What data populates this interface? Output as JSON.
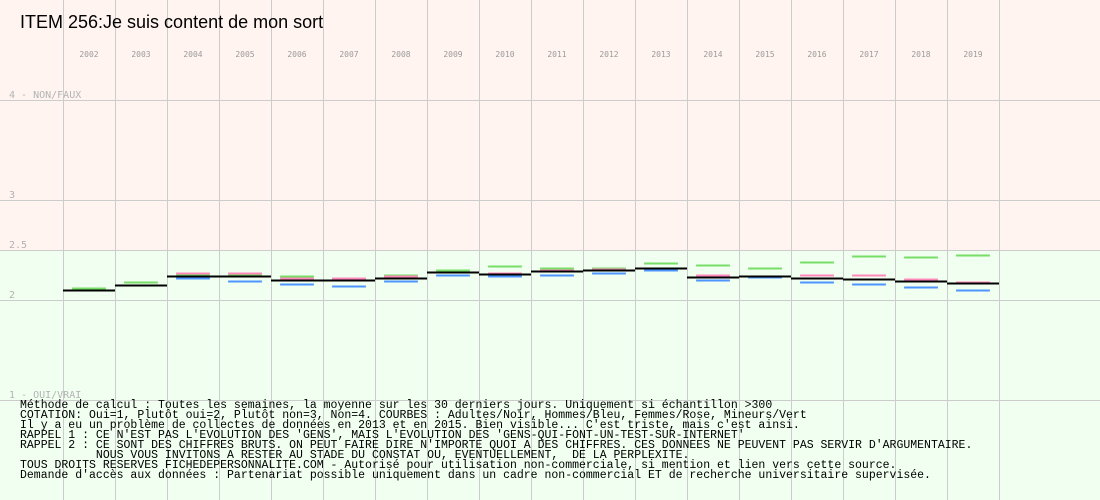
{
  "page": {
    "title": "ITEM 256:Je suis content de mon sort"
  },
  "notes": [
    "Méthode de calcul : Toutes les semaines, la moyenne sur les 30 derniers jours. Uniquement si échantillon >300",
    "COTATION: Oui=1, Plutôt oui=2, Plutôt non=3, Non=4. COURBES : Adultes/Noir, Hommes/Bleu, Femmes/Rose, Mineurs/Vert",
    "Il y a eu un problème de collectes de données en 2013 et en 2015. Bien visible... C'est triste, mais c'est ainsi.",
    "RAPPEL 1 : CE N'EST PAS L'EVOLUTION DES 'GENS', MAIS L'EVOLUTION DES 'GENS-QUI-FONT-UN-TEST-SUR-INTERNET'",
    "RAPPEL 2 : CE SONT DES CHIFFRES BRUTS. ON PEUT FAIRE DIRE N'IMPORTE QUOI A DES CHIFFRES. CES DONNEES NE PEUVENT PAS SERVIR D'ARGUMENTAIRE.",
    "           NOUS VOUS INVITONS A RESTER AU STADE DU CONSTAT OU, EVENTUELLEMENT,  DE LA PERPLEXITE.",
    "TOUS DROITS RESERVES FICHEDEPERSONNALITE.COM - Autorisé pour utilisation non-commerciale, si mention et lien vers cette source.",
    "Demande d'accès aux données : Partenariat possible uniquement dans un cadre non-commercial ET de recherche universitaire supervisée."
  ],
  "colors": {
    "band_upper": "#fff4f0",
    "band_lower": "#f0fff0",
    "grid": "#cccccc",
    "adultes": "#000000",
    "hommes": "#4d94ff",
    "femmes": "#ff88bb",
    "mineurs": "#77dd66"
  },
  "chart_data": {
    "type": "line",
    "title": "ITEM 256:Je suis content de mon sort",
    "categories": [
      "2002",
      "2003",
      "2004",
      "2005",
      "2006",
      "2007",
      "2008",
      "2009",
      "2010",
      "2011",
      "2012",
      "2013",
      "2014",
      "2015",
      "2016",
      "2017",
      "2018",
      "2019"
    ],
    "ylim": [
      1,
      4
    ],
    "yticks": [
      {
        "value": 4,
        "label": "4 - NON/FAUX"
      },
      {
        "value": 3,
        "label": "3"
      },
      {
        "value": 2.5,
        "label": "2.5"
      },
      {
        "value": 2,
        "label": "2"
      },
      {
        "value": 1,
        "label": "1 - OUI/VRAI"
      }
    ],
    "bands": [
      {
        "from": 2.5,
        "to": 4,
        "color": "#fff4f0"
      },
      {
        "from": 1,
        "to": 2.5,
        "color": "#f0fff0"
      }
    ],
    "grid": true,
    "series": [
      {
        "name": "Adultes",
        "color": "#000000",
        "values": [
          2.1,
          2.15,
          2.24,
          2.24,
          2.2,
          2.2,
          2.22,
          2.28,
          2.26,
          2.29,
          2.3,
          2.32,
          2.23,
          2.24,
          2.22,
          2.21,
          2.19,
          2.17
        ]
      },
      {
        "name": "Hommes",
        "color": "#4d94ff",
        "values": [
          2.1,
          2.15,
          2.22,
          2.19,
          2.16,
          2.14,
          2.19,
          2.25,
          2.24,
          2.25,
          2.27,
          2.3,
          2.2,
          2.23,
          2.18,
          2.16,
          2.13,
          2.1
        ]
      },
      {
        "name": "Femmes",
        "color": "#ff88bb",
        "values": [
          2.1,
          2.15,
          2.27,
          2.27,
          2.22,
          2.22,
          2.24,
          2.28,
          2.27,
          2.3,
          2.31,
          2.32,
          2.25,
          2.24,
          2.25,
          2.25,
          2.21,
          2.18
        ]
      },
      {
        "name": "Mineurs",
        "color": "#77dd66",
        "values": [
          2.12,
          2.18,
          2.25,
          2.25,
          2.24,
          2.22,
          2.25,
          2.3,
          2.34,
          2.32,
          2.32,
          2.37,
          2.35,
          2.32,
          2.38,
          2.44,
          2.43,
          2.45
        ]
      }
    ]
  }
}
